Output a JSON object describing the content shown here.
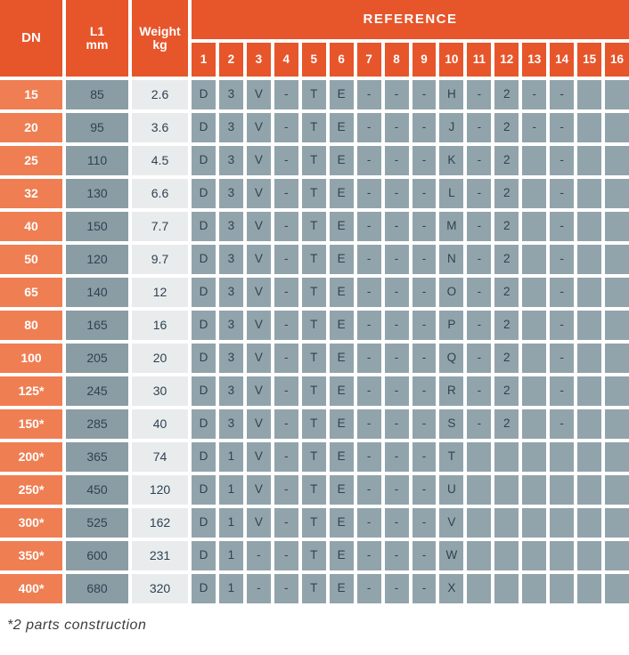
{
  "header": {
    "dn": "DN",
    "l1_line1": "L1",
    "l1_line2": "mm",
    "weight_line1": "Weight",
    "weight_line2": "kg",
    "reference": "REFERENCE",
    "ref_columns": [
      "1",
      "2",
      "3",
      "4",
      "5",
      "6",
      "7",
      "8",
      "9",
      "10",
      "11",
      "12",
      "13",
      "14",
      "15",
      "16"
    ]
  },
  "rows": [
    {
      "dn": "15",
      "l1": "85",
      "weight": "2.6",
      "refs": [
        "D",
        "3",
        "V",
        "-",
        "T",
        "E",
        "-",
        "-",
        "-",
        "H",
        "-",
        "2",
        "-",
        "-",
        "",
        ""
      ]
    },
    {
      "dn": "20",
      "l1": "95",
      "weight": "3.6",
      "refs": [
        "D",
        "3",
        "V",
        "-",
        "T",
        "E",
        "-",
        "-",
        "-",
        "J",
        "-",
        "2",
        "-",
        "-",
        "",
        ""
      ]
    },
    {
      "dn": "25",
      "l1": "110",
      "weight": "4.5",
      "refs": [
        "D",
        "3",
        "V",
        "-",
        "T",
        "E",
        "-",
        "-",
        "-",
        "K",
        "-",
        "2",
        "",
        "-",
        "",
        ""
      ]
    },
    {
      "dn": "32",
      "l1": "130",
      "weight": "6.6",
      "refs": [
        "D",
        "3",
        "V",
        "-",
        "T",
        "E",
        "-",
        "-",
        "-",
        "L",
        "-",
        "2",
        "",
        "-",
        "",
        ""
      ]
    },
    {
      "dn": "40",
      "l1": "150",
      "weight": "7.7",
      "refs": [
        "D",
        "3",
        "V",
        "-",
        "T",
        "E",
        "-",
        "-",
        "-",
        "M",
        "-",
        "2",
        "",
        "-",
        "",
        ""
      ]
    },
    {
      "dn": "50",
      "l1": "120",
      "weight": "9.7",
      "refs": [
        "D",
        "3",
        "V",
        "-",
        "T",
        "E",
        "-",
        "-",
        "-",
        "N",
        "-",
        "2",
        "",
        "-",
        "",
        ""
      ]
    },
    {
      "dn": "65",
      "l1": "140",
      "weight": "12",
      "refs": [
        "D",
        "3",
        "V",
        "-",
        "T",
        "E",
        "-",
        "-",
        "-",
        "O",
        "-",
        "2",
        "",
        "-",
        "",
        ""
      ]
    },
    {
      "dn": "80",
      "l1": "165",
      "weight": "16",
      "refs": [
        "D",
        "3",
        "V",
        "-",
        "T",
        "E",
        "-",
        "-",
        "-",
        "P",
        "-",
        "2",
        "",
        "-",
        "",
        ""
      ]
    },
    {
      "dn": "100",
      "l1": "205",
      "weight": "20",
      "refs": [
        "D",
        "3",
        "V",
        "-",
        "T",
        "E",
        "-",
        "-",
        "-",
        "Q",
        "-",
        "2",
        "",
        "-",
        "",
        ""
      ]
    },
    {
      "dn": "125*",
      "l1": "245",
      "weight": "30",
      "refs": [
        "D",
        "3",
        "V",
        "-",
        "T",
        "E",
        "-",
        "-",
        "-",
        "R",
        "-",
        "2",
        "",
        "-",
        "",
        ""
      ]
    },
    {
      "dn": "150*",
      "l1": "285",
      "weight": "40",
      "refs": [
        "D",
        "3",
        "V",
        "-",
        "T",
        "E",
        "-",
        "-",
        "-",
        "S",
        "-",
        "2",
        "",
        "-",
        "",
        ""
      ]
    },
    {
      "dn": "200*",
      "l1": "365",
      "weight": "74",
      "refs": [
        "D",
        "1",
        "V",
        "-",
        "T",
        "E",
        "-",
        "-",
        "-",
        "T",
        "",
        "",
        "",
        "",
        "",
        ""
      ]
    },
    {
      "dn": "250*",
      "l1": "450",
      "weight": "120",
      "refs": [
        "D",
        "1",
        "V",
        "-",
        "T",
        "E",
        "-",
        "-",
        "-",
        "U",
        "",
        "",
        "",
        "",
        "",
        ""
      ]
    },
    {
      "dn": "300*",
      "l1": "525",
      "weight": "162",
      "refs": [
        "D",
        "1",
        "V",
        "-",
        "T",
        "E",
        "-",
        "-",
        "-",
        "V",
        "",
        "",
        "",
        "",
        "",
        ""
      ]
    },
    {
      "dn": "350*",
      "l1": "600",
      "weight": "231",
      "refs": [
        "D",
        "1",
        "-",
        "-",
        "T",
        "E",
        "-",
        "-",
        "-",
        "W",
        "",
        "",
        "",
        "",
        "",
        ""
      ]
    },
    {
      "dn": "400*",
      "l1": "680",
      "weight": "320",
      "refs": [
        "D",
        "1",
        "-",
        "-",
        "T",
        "E",
        "-",
        "-",
        "-",
        "X",
        "",
        "",
        "",
        "",
        "",
        ""
      ]
    }
  ],
  "footnote": "*2 parts construction",
  "colors": {
    "header_orange": "#E7552B",
    "dn_row_orange": "#EF7E53",
    "l1_cell_gray": "#8A9DA5",
    "weight_cell_gray": "#E9ECED",
    "reference_cell_gray": "#92A4AB",
    "text_dark": "#2F4251",
    "text_light": "#FFFFFF"
  }
}
